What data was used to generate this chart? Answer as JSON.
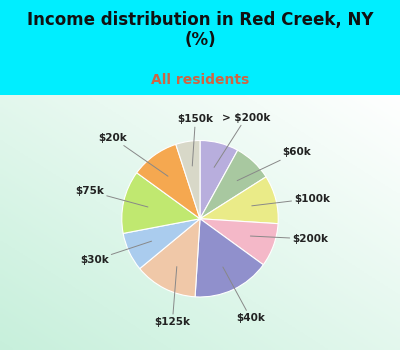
{
  "title": "Income distribution in Red Creek, NY\n(%)",
  "subtitle": "All residents",
  "title_color": "#111111",
  "subtitle_color": "#cc6644",
  "background_color": "#00eeff",
  "labels": [
    "> $200k",
    "$60k",
    "$100k",
    "$200k",
    "$40k",
    "$125k",
    "$30k",
    "$75k",
    "$20k",
    "$150k"
  ],
  "values": [
    8,
    8,
    10,
    9,
    16,
    13,
    8,
    13,
    10,
    5
  ],
  "colors": [
    "#b8aedd",
    "#a8c8a0",
    "#eaeb88",
    "#f4b8c8",
    "#9090cc",
    "#f0c8a8",
    "#aaccee",
    "#c0e870",
    "#f5a850",
    "#d8d8c8"
  ],
  "label_fontsize": 7.5,
  "figsize": [
    4.0,
    3.5
  ],
  "dpi": 100,
  "startangle": 90
}
